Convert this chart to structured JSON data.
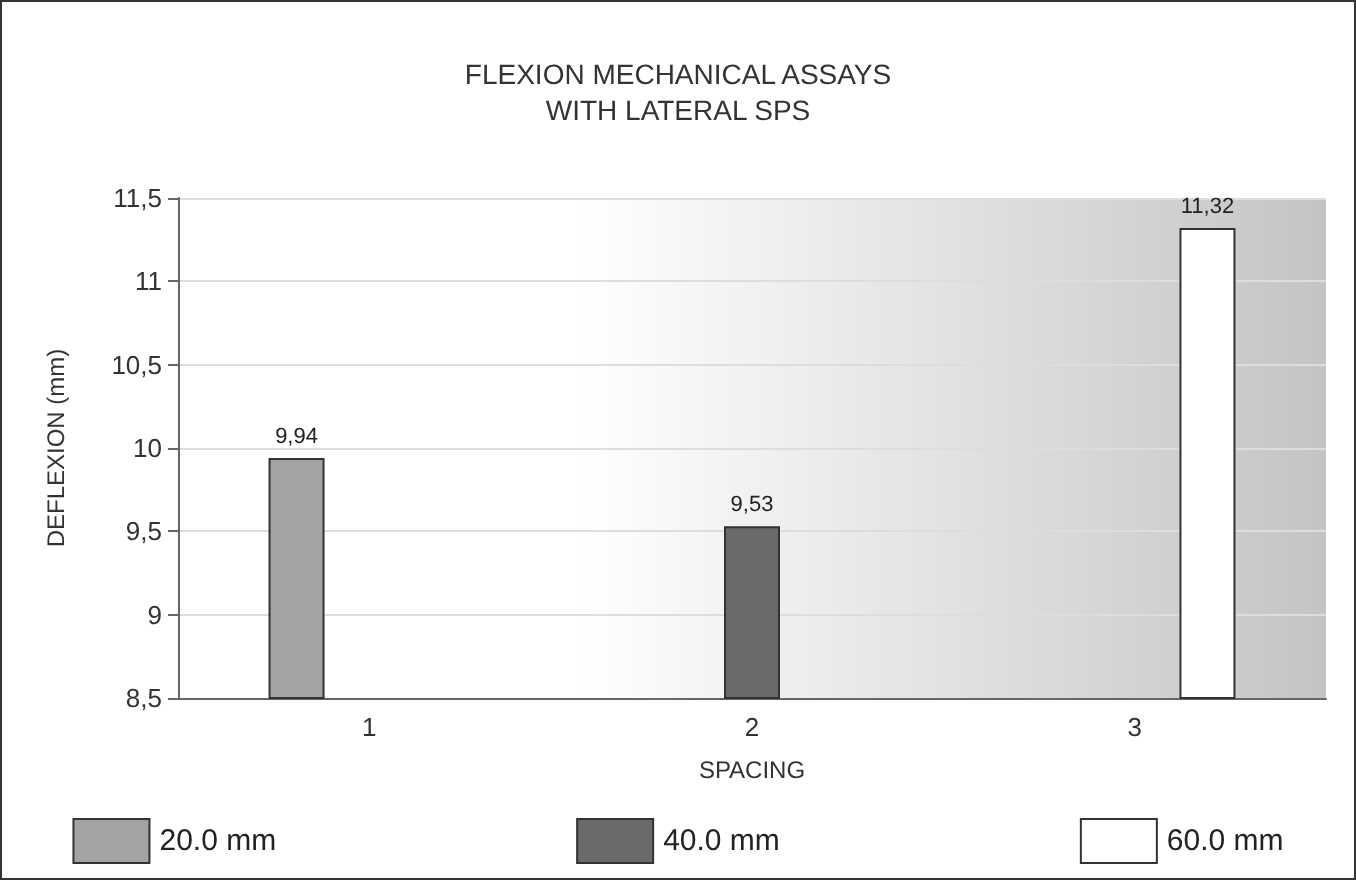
{
  "chart_data": {
    "type": "bar",
    "title": "FLEXION MECHANICAL ASSAYS\nWITH LATERAL SPS",
    "xlabel": "SPACING",
    "ylabel": "DEFLEXION (mm)",
    "categories": [
      "1",
      "2",
      "3"
    ],
    "series": [
      {
        "name": "20.0 mm",
        "color": "#a3a3a3",
        "values": [
          9.94,
          null,
          null
        ],
        "value_labels": [
          "9,94",
          null,
          null
        ]
      },
      {
        "name": "40.0 mm",
        "color": "#6a6a6a",
        "values": [
          null,
          9.53,
          null
        ],
        "value_labels": [
          null,
          "9,53",
          null
        ]
      },
      {
        "name": "60.0 mm",
        "color": "#ffffff",
        "values": [
          null,
          null,
          11.32
        ],
        "value_labels": [
          null,
          null,
          "11,32"
        ]
      }
    ],
    "ylim": [
      8.5,
      11.5
    ],
    "yticks": [
      {
        "value": 8.5,
        "label": "8,5"
      },
      9,
      {
        "value": 9.5,
        "label": "9,5"
      },
      10,
      {
        "value": 10.5,
        "label": "10,5"
      },
      11,
      {
        "value": 11.5,
        "label": "11,5"
      }
    ],
    "grid": "y",
    "legend": "bottom"
  }
}
